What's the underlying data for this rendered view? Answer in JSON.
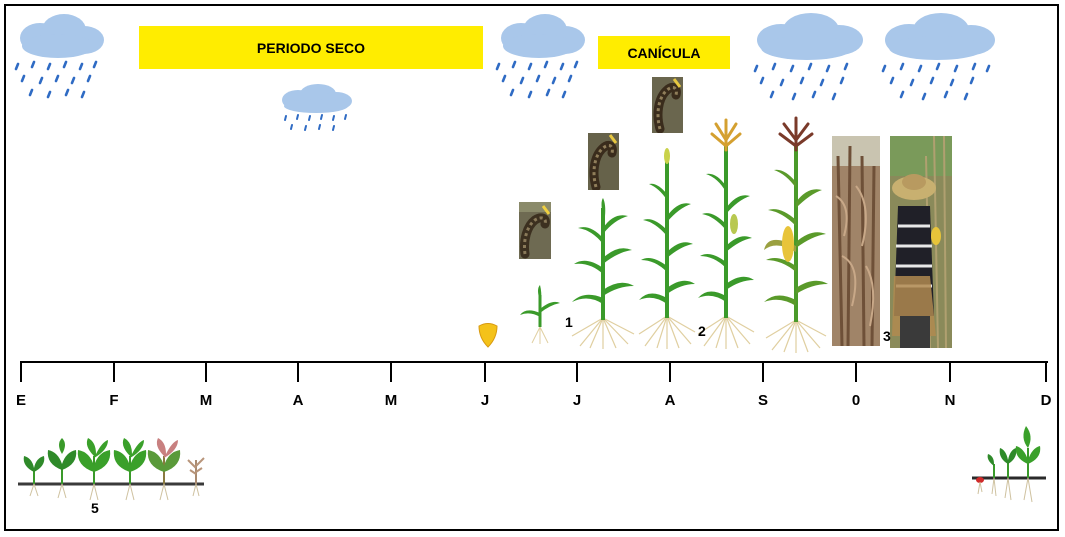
{
  "banners": {
    "dry_period": "PERIODO SECO",
    "canicula": "CANÍCULA"
  },
  "months": [
    "E",
    "F",
    "M",
    "A",
    "M",
    "J",
    "J",
    "A",
    "S",
    "0",
    "N",
    "D"
  ],
  "stage_numbers": {
    "one": "1",
    "two": "2",
    "three": "3",
    "five": "5"
  },
  "colors": {
    "banner": "#ffed00",
    "cloud": "#a9c7ea",
    "rain": "#2f6bc4",
    "leaf": "#3a9a2a",
    "root": "#e0cfa0"
  },
  "icons": [
    "rain-cloud-icon",
    "corn-seed-icon",
    "caterpillar-pest-icon",
    "corn-plant-icon",
    "bean-plant-icon"
  ]
}
